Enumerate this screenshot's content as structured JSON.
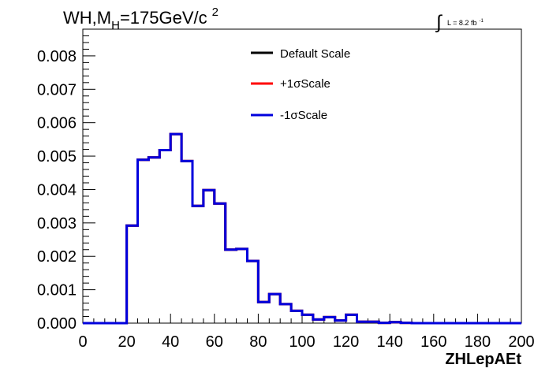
{
  "chart_data": {
    "type": "line",
    "title_main": "WH,M",
    "title_sub": "H",
    "title_rest": "=175GeV/c",
    "title_sup": "2",
    "lumi_symbol": "∫",
    "lumi_text": "L = 8.2 fb",
    "lumi_sup": "-1",
    "xlabel": "ZHLepAEt",
    "ylabel": "",
    "xlim": [
      0,
      200
    ],
    "ylim": [
      0,
      0.0088
    ],
    "x_ticks": [
      "0",
      "20",
      "40",
      "60",
      "80",
      "100",
      "120",
      "140",
      "160",
      "180",
      "200"
    ],
    "y_ticks": [
      "0.000",
      "0.001",
      "0.002",
      "0.003",
      "0.004",
      "0.005",
      "0.006",
      "0.007",
      "0.008"
    ],
    "grid": false,
    "legend_position": "top-right",
    "bin_edges": [
      0,
      5,
      10,
      15,
      20,
      25,
      30,
      35,
      40,
      45,
      50,
      55,
      60,
      65,
      70,
      75,
      80,
      85,
      90,
      95,
      100,
      105,
      110,
      115,
      120,
      125,
      130,
      135,
      140,
      145,
      150,
      155,
      160,
      165,
      170,
      175,
      180,
      185,
      190,
      195,
      200
    ],
    "series": [
      {
        "name": "Default Scale",
        "color": "#000000",
        "values": [
          0,
          0,
          0,
          0,
          0.00292,
          0.00489,
          0.00496,
          0.00518,
          0.00566,
          0.00485,
          0.00351,
          0.00398,
          0.00358,
          0.0022,
          0.00222,
          0.00186,
          0.00063,
          0.00087,
          0.00057,
          0.00037,
          0.00025,
          0.00011,
          0.00018,
          8e-05,
          0.00025,
          4e-05,
          4e-05,
          1e-05,
          3e-05,
          1e-05,
          0,
          0,
          0,
          0,
          0,
          0,
          0,
          0,
          0,
          0
        ]
      },
      {
        "name": "+1σScale",
        "color": "#ff0000",
        "values": [
          0,
          0,
          0,
          0,
          0.00292,
          0.00489,
          0.00496,
          0.00518,
          0.00566,
          0.00485,
          0.00351,
          0.00398,
          0.00358,
          0.0022,
          0.00222,
          0.00186,
          0.00063,
          0.00087,
          0.00057,
          0.00037,
          0.00025,
          0.00011,
          0.00018,
          8e-05,
          0.00025,
          4e-05,
          4e-05,
          1e-05,
          3e-05,
          1e-05,
          0,
          0,
          0,
          0,
          0,
          0,
          0,
          0,
          0,
          0
        ]
      },
      {
        "name": "-1σScale",
        "color": "#0000dd",
        "values": [
          0,
          0,
          0,
          0,
          0.00292,
          0.00489,
          0.00496,
          0.00518,
          0.00566,
          0.00485,
          0.00351,
          0.00398,
          0.00358,
          0.0022,
          0.00222,
          0.00186,
          0.00063,
          0.00087,
          0.00057,
          0.00037,
          0.00025,
          0.00011,
          0.00018,
          8e-05,
          0.00025,
          4e-05,
          4e-05,
          1e-05,
          3e-05,
          1e-05,
          0,
          0,
          0,
          0,
          0,
          0,
          0,
          0,
          0,
          0
        ]
      }
    ]
  }
}
